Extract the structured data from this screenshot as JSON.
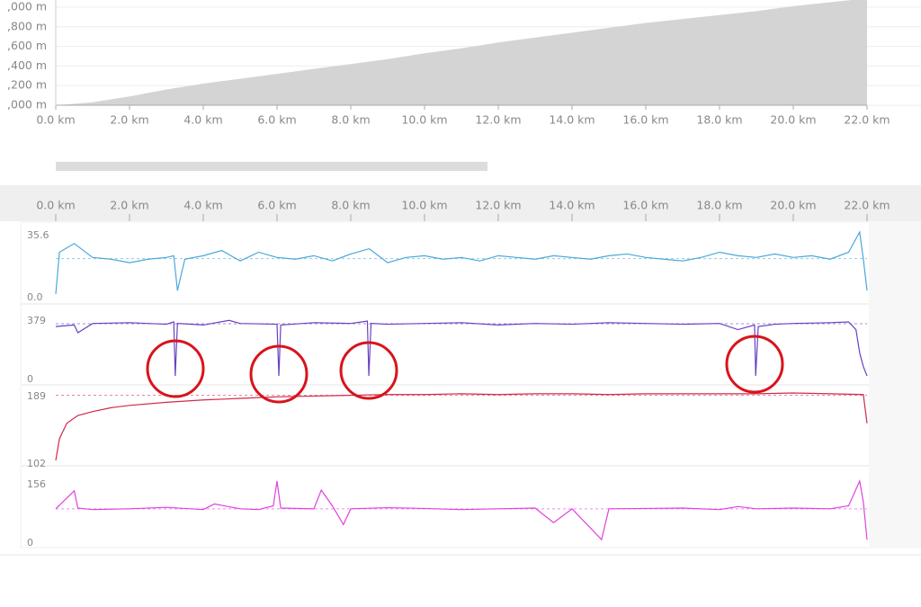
{
  "chart_data": [
    {
      "type": "area",
      "color": "#d4d4d4",
      "x": [
        0,
        1,
        2,
        3,
        4,
        5,
        6,
        7,
        8,
        9,
        10,
        11,
        12,
        13,
        14,
        15,
        16,
        17,
        18,
        19,
        20,
        21,
        22
      ],
      "values": [
        1000,
        1030,
        1090,
        1160,
        1220,
        1270,
        1320,
        1370,
        1420,
        1470,
        1530,
        1580,
        1640,
        1690,
        1740,
        1790,
        1840,
        1880,
        1920,
        1960,
        2010,
        2050,
        2090
      ],
      "xlim": [
        0,
        22
      ],
      "ylim": [
        1000,
        2000
      ],
      "xticks": [
        {
          "value": 0,
          "label": "0.0 km"
        },
        {
          "value": 2,
          "label": "2.0 km"
        },
        {
          "value": 4,
          "label": "4.0 km"
        },
        {
          "value": 6,
          "label": "6.0 km"
        },
        {
          "value": 8,
          "label": "8.0 km"
        },
        {
          "value": 10,
          "label": "10.0 km"
        },
        {
          "value": 12,
          "label": "12.0 km"
        },
        {
          "value": 14,
          "label": "14.0 km"
        },
        {
          "value": 16,
          "label": "16.0 km"
        },
        {
          "value": 18,
          "label": "18.0 km"
        },
        {
          "value": 20,
          "label": "20.0 km"
        },
        {
          "value": 22,
          "label": "22.0 km"
        }
      ],
      "yticks": [
        {
          "value": 1000,
          "label": ",000 m"
        },
        {
          "value": 1200,
          "label": ",200 m"
        },
        {
          "value": 1400,
          "label": ",400 m"
        },
        {
          "value": 1600,
          "label": ",600 m"
        },
        {
          "value": 1800,
          "label": ",800 m"
        },
        {
          "value": 2000,
          "label": ",000 m"
        }
      ],
      "grid": true
    },
    {
      "type": "line",
      "color": "#4aa8d8",
      "average": 20.3,
      "x": [
        0,
        0.1,
        0.5,
        1,
        1.5,
        2,
        2.5,
        3,
        3.2,
        3.3,
        3.5,
        4,
        4.5,
        5,
        5.5,
        6,
        6.5,
        7,
        7.5,
        8,
        8.5,
        9,
        9.5,
        10,
        10.5,
        11,
        11.5,
        12,
        12.5,
        13,
        13.5,
        14,
        14.5,
        15,
        15.5,
        16,
        16.5,
        17,
        17.5,
        18,
        18.5,
        19,
        19.5,
        20,
        20.5,
        21,
        21.5,
        21.8,
        21.9,
        22
      ],
      "values": [
        0,
        24,
        29,
        21,
        20,
        18,
        20,
        21,
        22,
        2,
        20,
        22,
        25,
        19,
        24,
        21,
        20,
        22,
        19,
        23,
        26,
        18,
        21,
        22,
        20,
        21,
        19,
        22,
        21,
        20,
        22,
        21,
        20,
        22,
        23,
        21,
        20,
        19,
        21,
        24,
        22,
        21,
        23,
        21,
        22,
        20,
        24,
        35.6,
        20,
        2
      ],
      "xlim": [
        0,
        22
      ],
      "ylim": [
        0,
        35.6
      ],
      "yticks": [
        {
          "value": 0,
          "label": "0.0"
        },
        35.6
      ]
    },
    {
      "type": "line",
      "color": "#6a3fc1",
      "average": 338,
      "x": [
        0,
        0.5,
        0.6,
        1,
        2,
        3,
        3.2,
        3.24,
        3.3,
        4,
        4.7,
        5,
        6,
        6.05,
        6.1,
        7,
        8,
        8.45,
        8.49,
        8.55,
        9,
        10,
        11,
        12,
        13,
        14,
        15,
        16,
        17,
        18,
        18.5,
        18.95,
        18.98,
        19.05,
        19.5,
        20,
        21,
        21.5,
        21.7,
        21.8,
        21.9,
        22
      ],
      "values": [
        320,
        330,
        280,
        340,
        345,
        335,
        350,
        0,
        340,
        330,
        360,
        340,
        335,
        0,
        330,
        345,
        340,
        355,
        0,
        340,
        335,
        340,
        345,
        330,
        340,
        335,
        345,
        340,
        335,
        340,
        300,
        330,
        0,
        320,
        335,
        340,
        345,
        350,
        300,
        150,
        60,
        0
      ],
      "xlim": [
        0,
        22
      ],
      "ylim": [
        0,
        379
      ],
      "yticks": [
        0,
        379
      ]
    },
    {
      "type": "line",
      "color": "#d2284a",
      "average": 186,
      "x": [
        0,
        0.1,
        0.3,
        0.6,
        1,
        1.5,
        2,
        3,
        4,
        5,
        6,
        7,
        8,
        9,
        10,
        11,
        12,
        13,
        14,
        15,
        16,
        17,
        18,
        19,
        20,
        21,
        21.9,
        22
      ],
      "values": [
        102,
        130,
        150,
        160,
        165,
        170,
        173,
        177,
        180,
        182,
        184,
        185,
        186,
        187,
        187,
        188,
        187,
        188,
        188,
        187,
        188,
        188,
        188,
        188,
        189,
        188,
        187,
        150
      ],
      "xlim": [
        0,
        22
      ],
      "ylim": [
        102,
        189
      ],
      "yticks": [
        102,
        189
      ]
    },
    {
      "type": "line",
      "color": "#e040e0",
      "average": 82,
      "x": [
        0,
        0.5,
        0.6,
        1,
        2,
        3,
        4,
        4.3,
        5,
        5.5,
        5.9,
        6,
        6.1,
        7,
        7.2,
        7.5,
        7.8,
        8,
        9,
        10,
        11,
        12,
        13,
        13.5,
        14,
        14.8,
        15,
        16,
        17,
        18,
        18.5,
        19,
        20,
        21,
        21.5,
        21.8,
        21.9,
        22
      ],
      "values": [
        82,
        130,
        84,
        80,
        82,
        86,
        80,
        95,
        82,
        80,
        90,
        156,
        84,
        82,
        132,
        90,
        40,
        82,
        85,
        83,
        80,
        82,
        84,
        45,
        82,
        0,
        82,
        83,
        84,
        80,
        88,
        82,
        84,
        82,
        90,
        156,
        100,
        0
      ],
      "xlim": [
        0,
        22
      ],
      "ylim": [
        0,
        156
      ],
      "yticks": [
        0,
        156
      ]
    }
  ]
}
